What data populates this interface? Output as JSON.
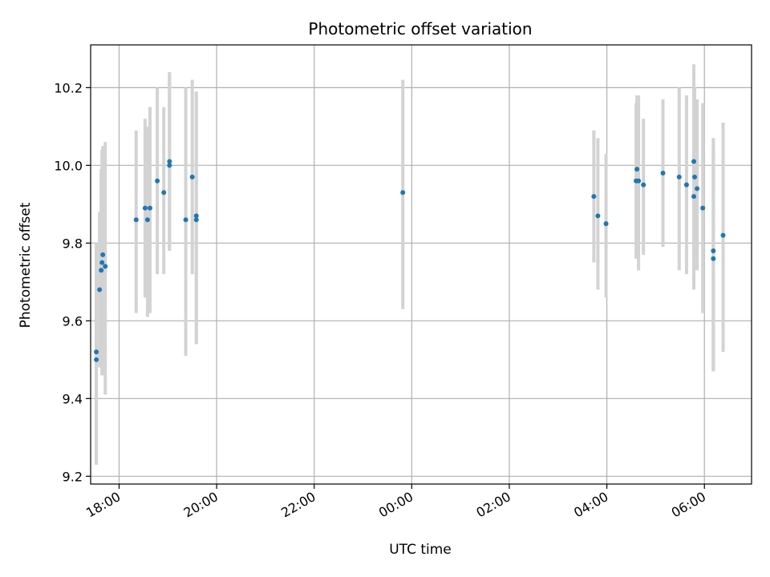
{
  "chart_data": {
    "type": "scatter",
    "title": "Photometric offset variation",
    "xlabel": "UTC time",
    "ylabel": "Photometric offset",
    "x_unit": "hours (UTC), continuing past midnight",
    "xlim": [
      "17:25",
      "06:58"
    ],
    "ylim": [
      9.18,
      10.31
    ],
    "x_ticks": [
      {
        "label": "18:00",
        "time": "18:00"
      },
      {
        "label": "20:00",
        "time": "20:00"
      },
      {
        "label": "22:00",
        "time": "22:00"
      },
      {
        "label": "00:00",
        "time": "00:00"
      },
      {
        "label": "02:00",
        "time": "02:00"
      },
      {
        "label": "04:00",
        "time": "04:00"
      },
      {
        "label": "06:00",
        "time": "06:00"
      }
    ],
    "y_ticks": [
      9.2,
      9.4,
      9.6,
      9.8,
      10.0,
      10.2
    ],
    "grid": true,
    "colors": {
      "point": "#1f77b4",
      "errorbar": "#d3d3d3",
      "grid": "#b0b0b0"
    },
    "points": [
      {
        "time": "17:32",
        "y": 9.52,
        "err_low": 9.23,
        "err_high": 9.8
      },
      {
        "time": "17:32",
        "y": 9.5,
        "err_low": 9.23,
        "err_high": 9.79
      },
      {
        "time": "17:36",
        "y": 9.68,
        "err_low": 9.48,
        "err_high": 9.88
      },
      {
        "time": "17:38",
        "y": 9.73,
        "err_low": 9.48,
        "err_high": 9.99
      },
      {
        "time": "17:39",
        "y": 9.75,
        "err_low": 9.46,
        "err_high": 10.04
      },
      {
        "time": "17:40",
        "y": 9.77,
        "err_low": 9.46,
        "err_high": 10.05
      },
      {
        "time": "17:43",
        "y": 9.74,
        "err_low": 9.41,
        "err_high": 10.06
      },
      {
        "time": "18:21",
        "y": 9.86,
        "err_low": 9.62,
        "err_high": 10.09
      },
      {
        "time": "18:32",
        "y": 9.89,
        "err_low": 9.66,
        "err_high": 10.12
      },
      {
        "time": "18:35",
        "y": 9.86,
        "err_low": 9.61,
        "err_high": 10.1
      },
      {
        "time": "18:38",
        "y": 9.89,
        "err_low": 9.62,
        "err_high": 10.15
      },
      {
        "time": "18:47",
        "y": 9.96,
        "err_low": 9.72,
        "err_high": 10.2
      },
      {
        "time": "18:55",
        "y": 9.93,
        "err_low": 9.72,
        "err_high": 10.15
      },
      {
        "time": "19:02",
        "y": 10.01,
        "err_low": 9.78,
        "err_high": 10.24
      },
      {
        "time": "19:02",
        "y": 10.0,
        "err_low": 9.78,
        "err_high": 10.23
      },
      {
        "time": "19:22",
        "y": 9.86,
        "err_low": 9.51,
        "err_high": 10.2
      },
      {
        "time": "19:30",
        "y": 9.97,
        "err_low": 9.72,
        "err_high": 10.22
      },
      {
        "time": "19:35",
        "y": 9.86,
        "err_low": 9.54,
        "err_high": 10.19
      },
      {
        "time": "19:35",
        "y": 9.87,
        "err_low": 9.54,
        "err_high": 10.19
      },
      {
        "time": "23:49",
        "y": 9.93,
        "err_low": 9.63,
        "err_high": 10.22
      },
      {
        "time": "03:44",
        "y": 9.92,
        "err_low": 9.75,
        "err_high": 10.09
      },
      {
        "time": "03:49",
        "y": 9.87,
        "err_low": 9.68,
        "err_high": 10.07
      },
      {
        "time": "03:59",
        "y": 9.85,
        "err_low": 9.66,
        "err_high": 10.03
      },
      {
        "time": "04:36",
        "y": 9.96,
        "err_low": 9.76,
        "err_high": 10.16
      },
      {
        "time": "04:37",
        "y": 9.99,
        "err_low": 9.79,
        "err_high": 10.18
      },
      {
        "time": "04:39",
        "y": 9.96,
        "err_low": 9.73,
        "err_high": 10.18
      },
      {
        "time": "04:45",
        "y": 9.95,
        "err_low": 9.77,
        "err_high": 10.12
      },
      {
        "time": "05:09",
        "y": 9.98,
        "err_low": 9.79,
        "err_high": 10.17
      },
      {
        "time": "05:29",
        "y": 9.97,
        "err_low": 9.73,
        "err_high": 10.2
      },
      {
        "time": "05:38",
        "y": 9.95,
        "err_low": 9.72,
        "err_high": 10.18
      },
      {
        "time": "05:47",
        "y": 10.01,
        "err_low": 9.77,
        "err_high": 10.26
      },
      {
        "time": "05:47",
        "y": 9.92,
        "err_low": 9.68,
        "err_high": 10.16
      },
      {
        "time": "05:48",
        "y": 9.97,
        "err_low": 9.77,
        "err_high": 10.2
      },
      {
        "time": "05:51",
        "y": 9.94,
        "err_low": 9.73,
        "err_high": 10.17
      },
      {
        "time": "05:58",
        "y": 9.89,
        "err_low": 9.62,
        "err_high": 10.16
      },
      {
        "time": "06:11",
        "y": 9.78,
        "err_low": 9.47,
        "err_high": 10.07
      },
      {
        "time": "06:11",
        "y": 9.76,
        "err_low": 9.47,
        "err_high": 10.05
      },
      {
        "time": "06:23",
        "y": 9.82,
        "err_low": 9.52,
        "err_high": 10.11
      }
    ]
  }
}
